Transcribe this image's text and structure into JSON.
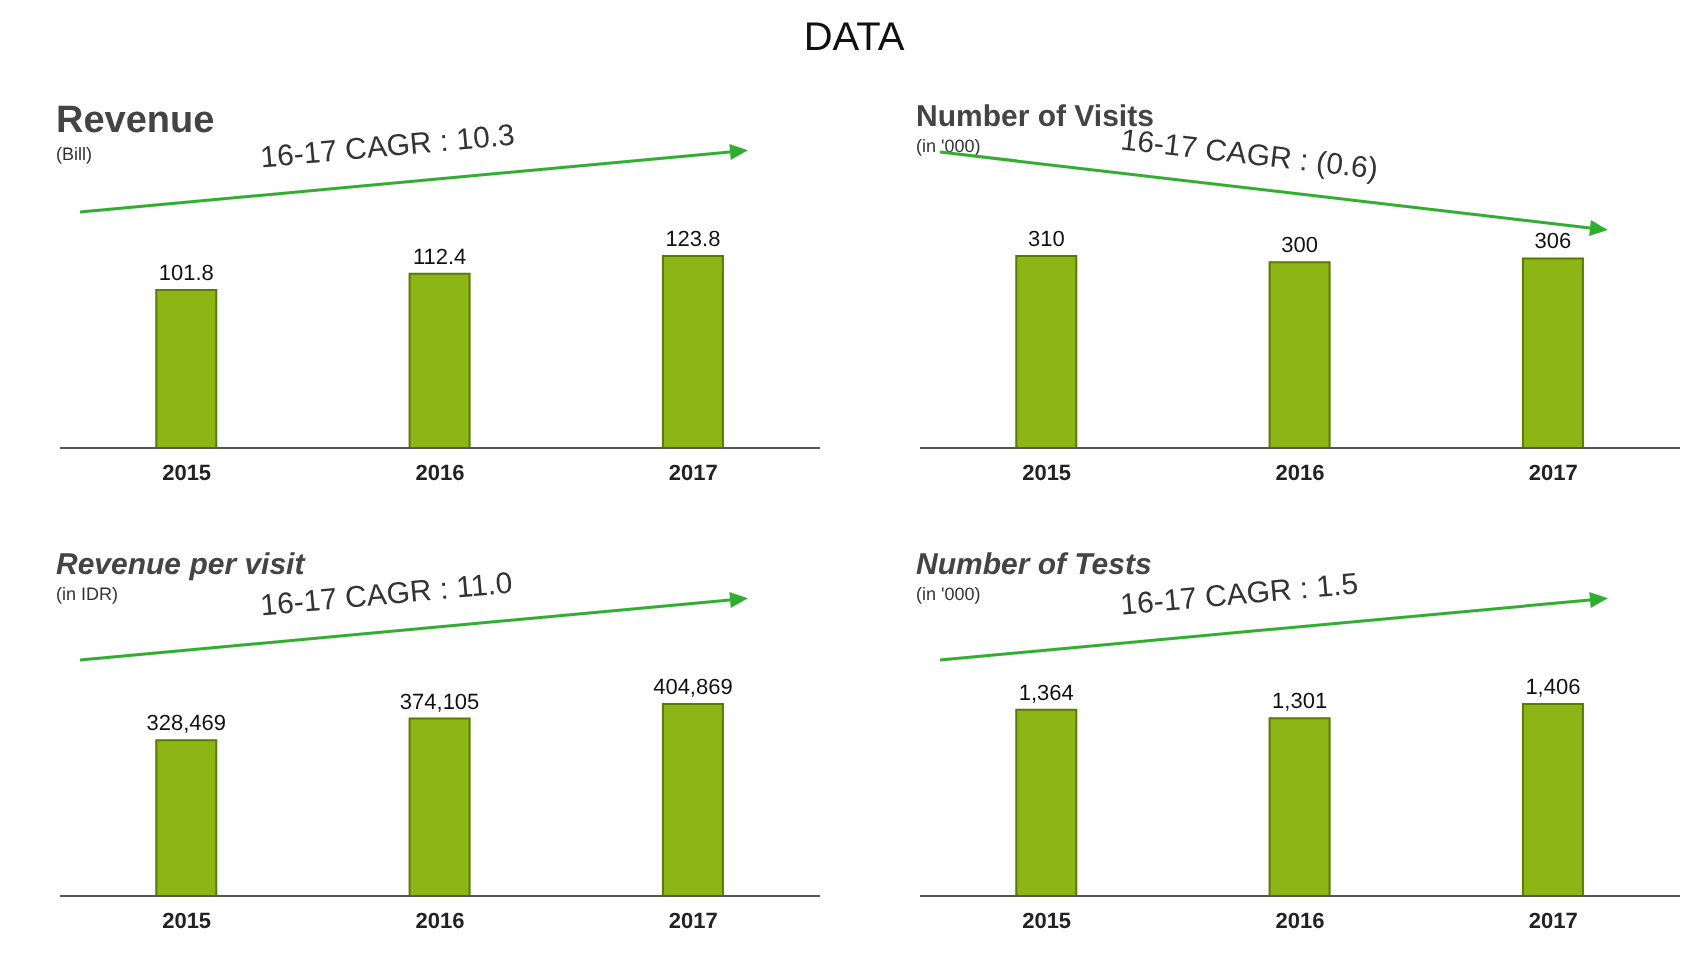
{
  "chart_data": [
    {
      "type": "other",
      "title": "DATA"
    },
    {
      "type": "bar",
      "title": "Revenue",
      "subtitle": "(Bill)",
      "annotations": [
        "16-17 CAGR : 10.3"
      ],
      "categories": [
        "2015",
        "2016",
        "2017"
      ],
      "values": [
        101.8,
        112.4,
        123.8
      ],
      "color": "#8cb515",
      "data_labels": true,
      "grid": false,
      "legend": false
    },
    {
      "type": "bar",
      "title": "Number of Visits",
      "subtitle": "(in '000)",
      "annotations": [
        "16-17 CAGR : (0.6)"
      ],
      "categories": [
        "2015",
        "2016",
        "2017"
      ],
      "values": [
        310,
        300,
        306
      ],
      "color": "#8cb515",
      "data_labels": true,
      "grid": false,
      "legend": false
    },
    {
      "type": "bar",
      "title": "Revenue per visit",
      "subtitle": "(in IDR)",
      "annotations": [
        "16-17 CAGR : 11.0"
      ],
      "categories": [
        "2015",
        "2016",
        "2017"
      ],
      "values": [
        328469,
        374105,
        404869
      ],
      "value_labels": [
        "328,469",
        "374,105",
        "404,869"
      ],
      "color": "#8cb515",
      "grid": false,
      "legend": false
    },
    {
      "type": "bar",
      "title": "Number of Tests",
      "subtitle": "(in '000)",
      "annotations": [
        "16-17 CAGR : 1.5"
      ],
      "categories": [
        "2015",
        "2016",
        "2017"
      ],
      "values": [
        1364,
        1301,
        1406
      ],
      "value_labels": [
        "1,364",
        "1,301",
        "1,406"
      ],
      "color": "#8cb515",
      "grid": false,
      "legend": false
    }
  ]
}
